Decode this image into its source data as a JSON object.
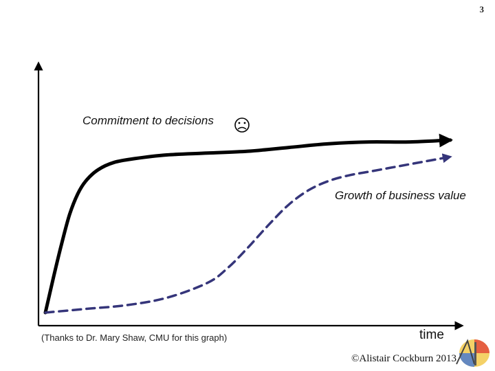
{
  "page_number": "3",
  "chart_data": {
    "type": "line",
    "x_axis_label": "time",
    "series": [
      {
        "name": "Commitment to decisions",
        "style": "solid",
        "color": "#000000",
        "marker_glyph": "frowning-face-icon",
        "x": [
          0,
          0.02,
          0.04,
          0.06,
          0.08,
          0.1,
          0.13,
          0.17,
          0.22,
          0.3,
          0.4,
          0.5,
          0.6,
          0.7,
          0.8,
          0.9,
          1.0
        ],
        "y": [
          0.0,
          0.19,
          0.37,
          0.53,
          0.64,
          0.71,
          0.77,
          0.81,
          0.83,
          0.85,
          0.86,
          0.87,
          0.89,
          0.91,
          0.92,
          0.92,
          0.93
        ]
      },
      {
        "name": "Growth of business value",
        "style": "dashed",
        "color": "#35357a",
        "x": [
          0,
          0.1,
          0.2,
          0.3,
          0.4,
          0.45,
          0.5,
          0.55,
          0.6,
          0.65,
          0.7,
          0.75,
          0.8,
          0.85,
          0.9,
          0.95,
          1.0
        ],
        "y": [
          0.0,
          0.02,
          0.04,
          0.08,
          0.16,
          0.24,
          0.35,
          0.47,
          0.58,
          0.66,
          0.71,
          0.74,
          0.76,
          0.78,
          0.8,
          0.82,
          0.84
        ]
      }
    ],
    "xlim": [
      0,
      1
    ],
    "ylim": [
      0,
      1
    ]
  },
  "labels": {
    "commitment": "Commitment to decisions",
    "growth": "Growth of business value",
    "time": "time"
  },
  "caption": "(Thanks to Dr. Mary Shaw, CMU for this graph)",
  "copyright": "©Alistair Cockburn 2013",
  "colors": {
    "axis": "#000000",
    "commitment_line": "#000000",
    "growth_line": "#35357a"
  }
}
